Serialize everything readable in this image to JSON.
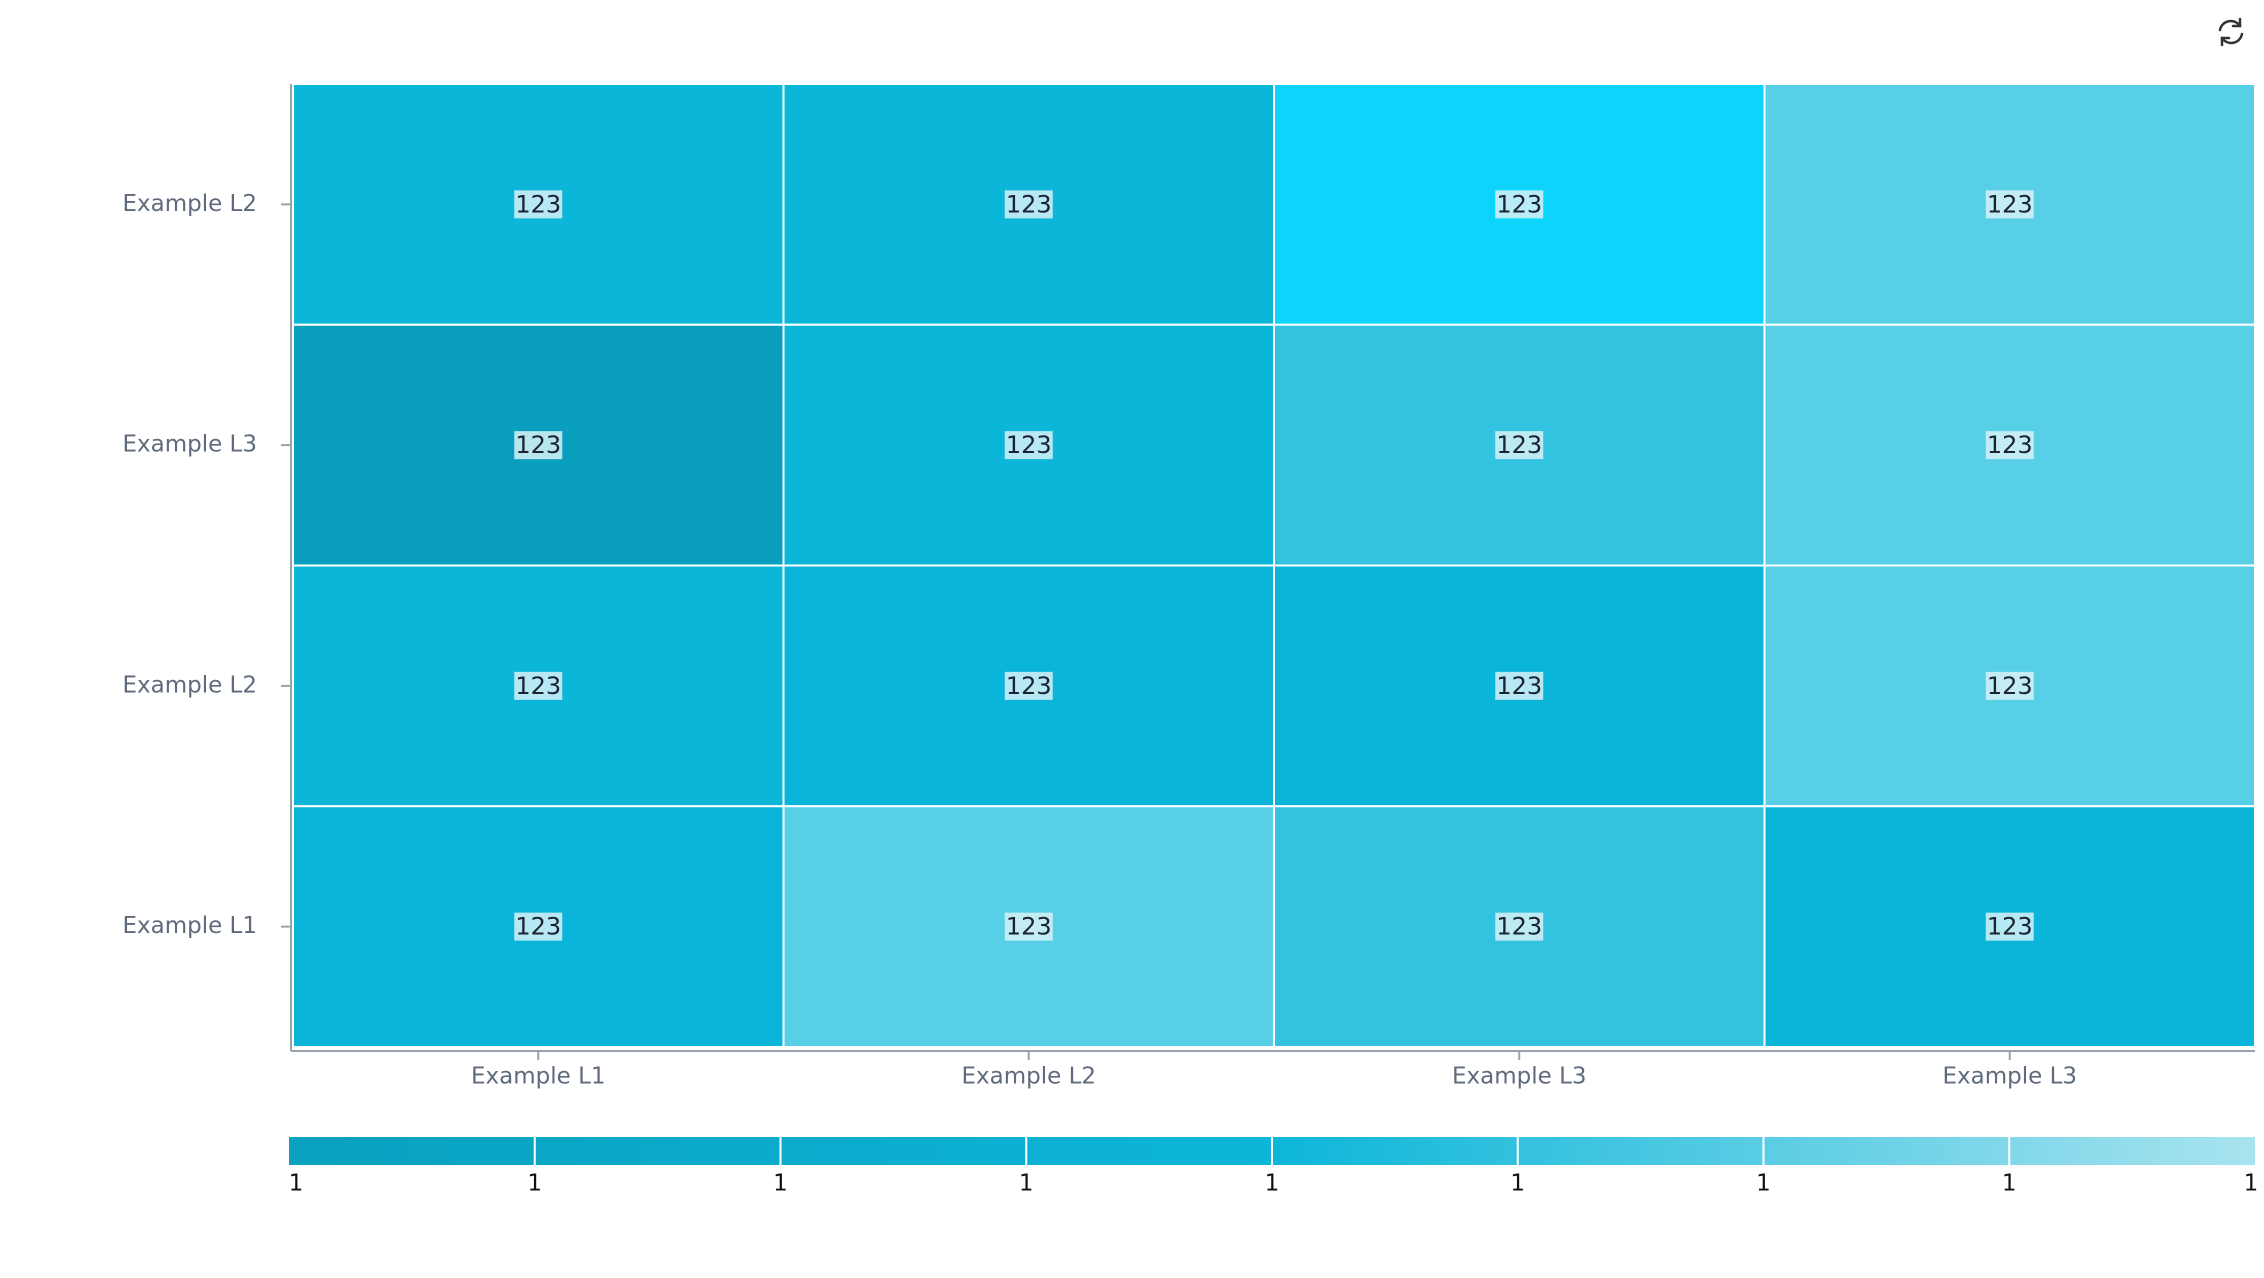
{
  "chart_data": {
    "type": "heatmap",
    "x_categories": [
      "Example L1",
      "Example L2",
      "Example L3",
      "Example L3"
    ],
    "y_categories": [
      "Example L2",
      "Example L3",
      "Example L2",
      "Example L1"
    ],
    "values": [
      [
        123,
        123,
        123,
        123
      ],
      [
        123,
        123,
        123,
        123
      ],
      [
        123,
        123,
        123,
        123
      ],
      [
        123,
        123,
        123,
        123
      ]
    ],
    "colors": [
      [
        "#0cb6d9",
        "#0cb6d9",
        "#0cd4fb",
        "#57cfe6"
      ],
      [
        "#0a9fbf",
        "#0cb6d9",
        "#33c2e0",
        "#57cfe6"
      ],
      [
        "#0cb6d9",
        "#0ab5d9",
        "#0ab5d9",
        "#57cfe6"
      ],
      [
        "#0ab5d9",
        "#57cfe6",
        "#33c2e0",
        "#0ab5d9"
      ]
    ],
    "colorbar": {
      "colors": [
        "#0aa0bf",
        "#0cb6d9",
        "#a8e3ef"
      ],
      "ticks": [
        "1",
        "1",
        "1",
        "1",
        "1",
        "1",
        "1",
        "1",
        "1"
      ]
    }
  }
}
